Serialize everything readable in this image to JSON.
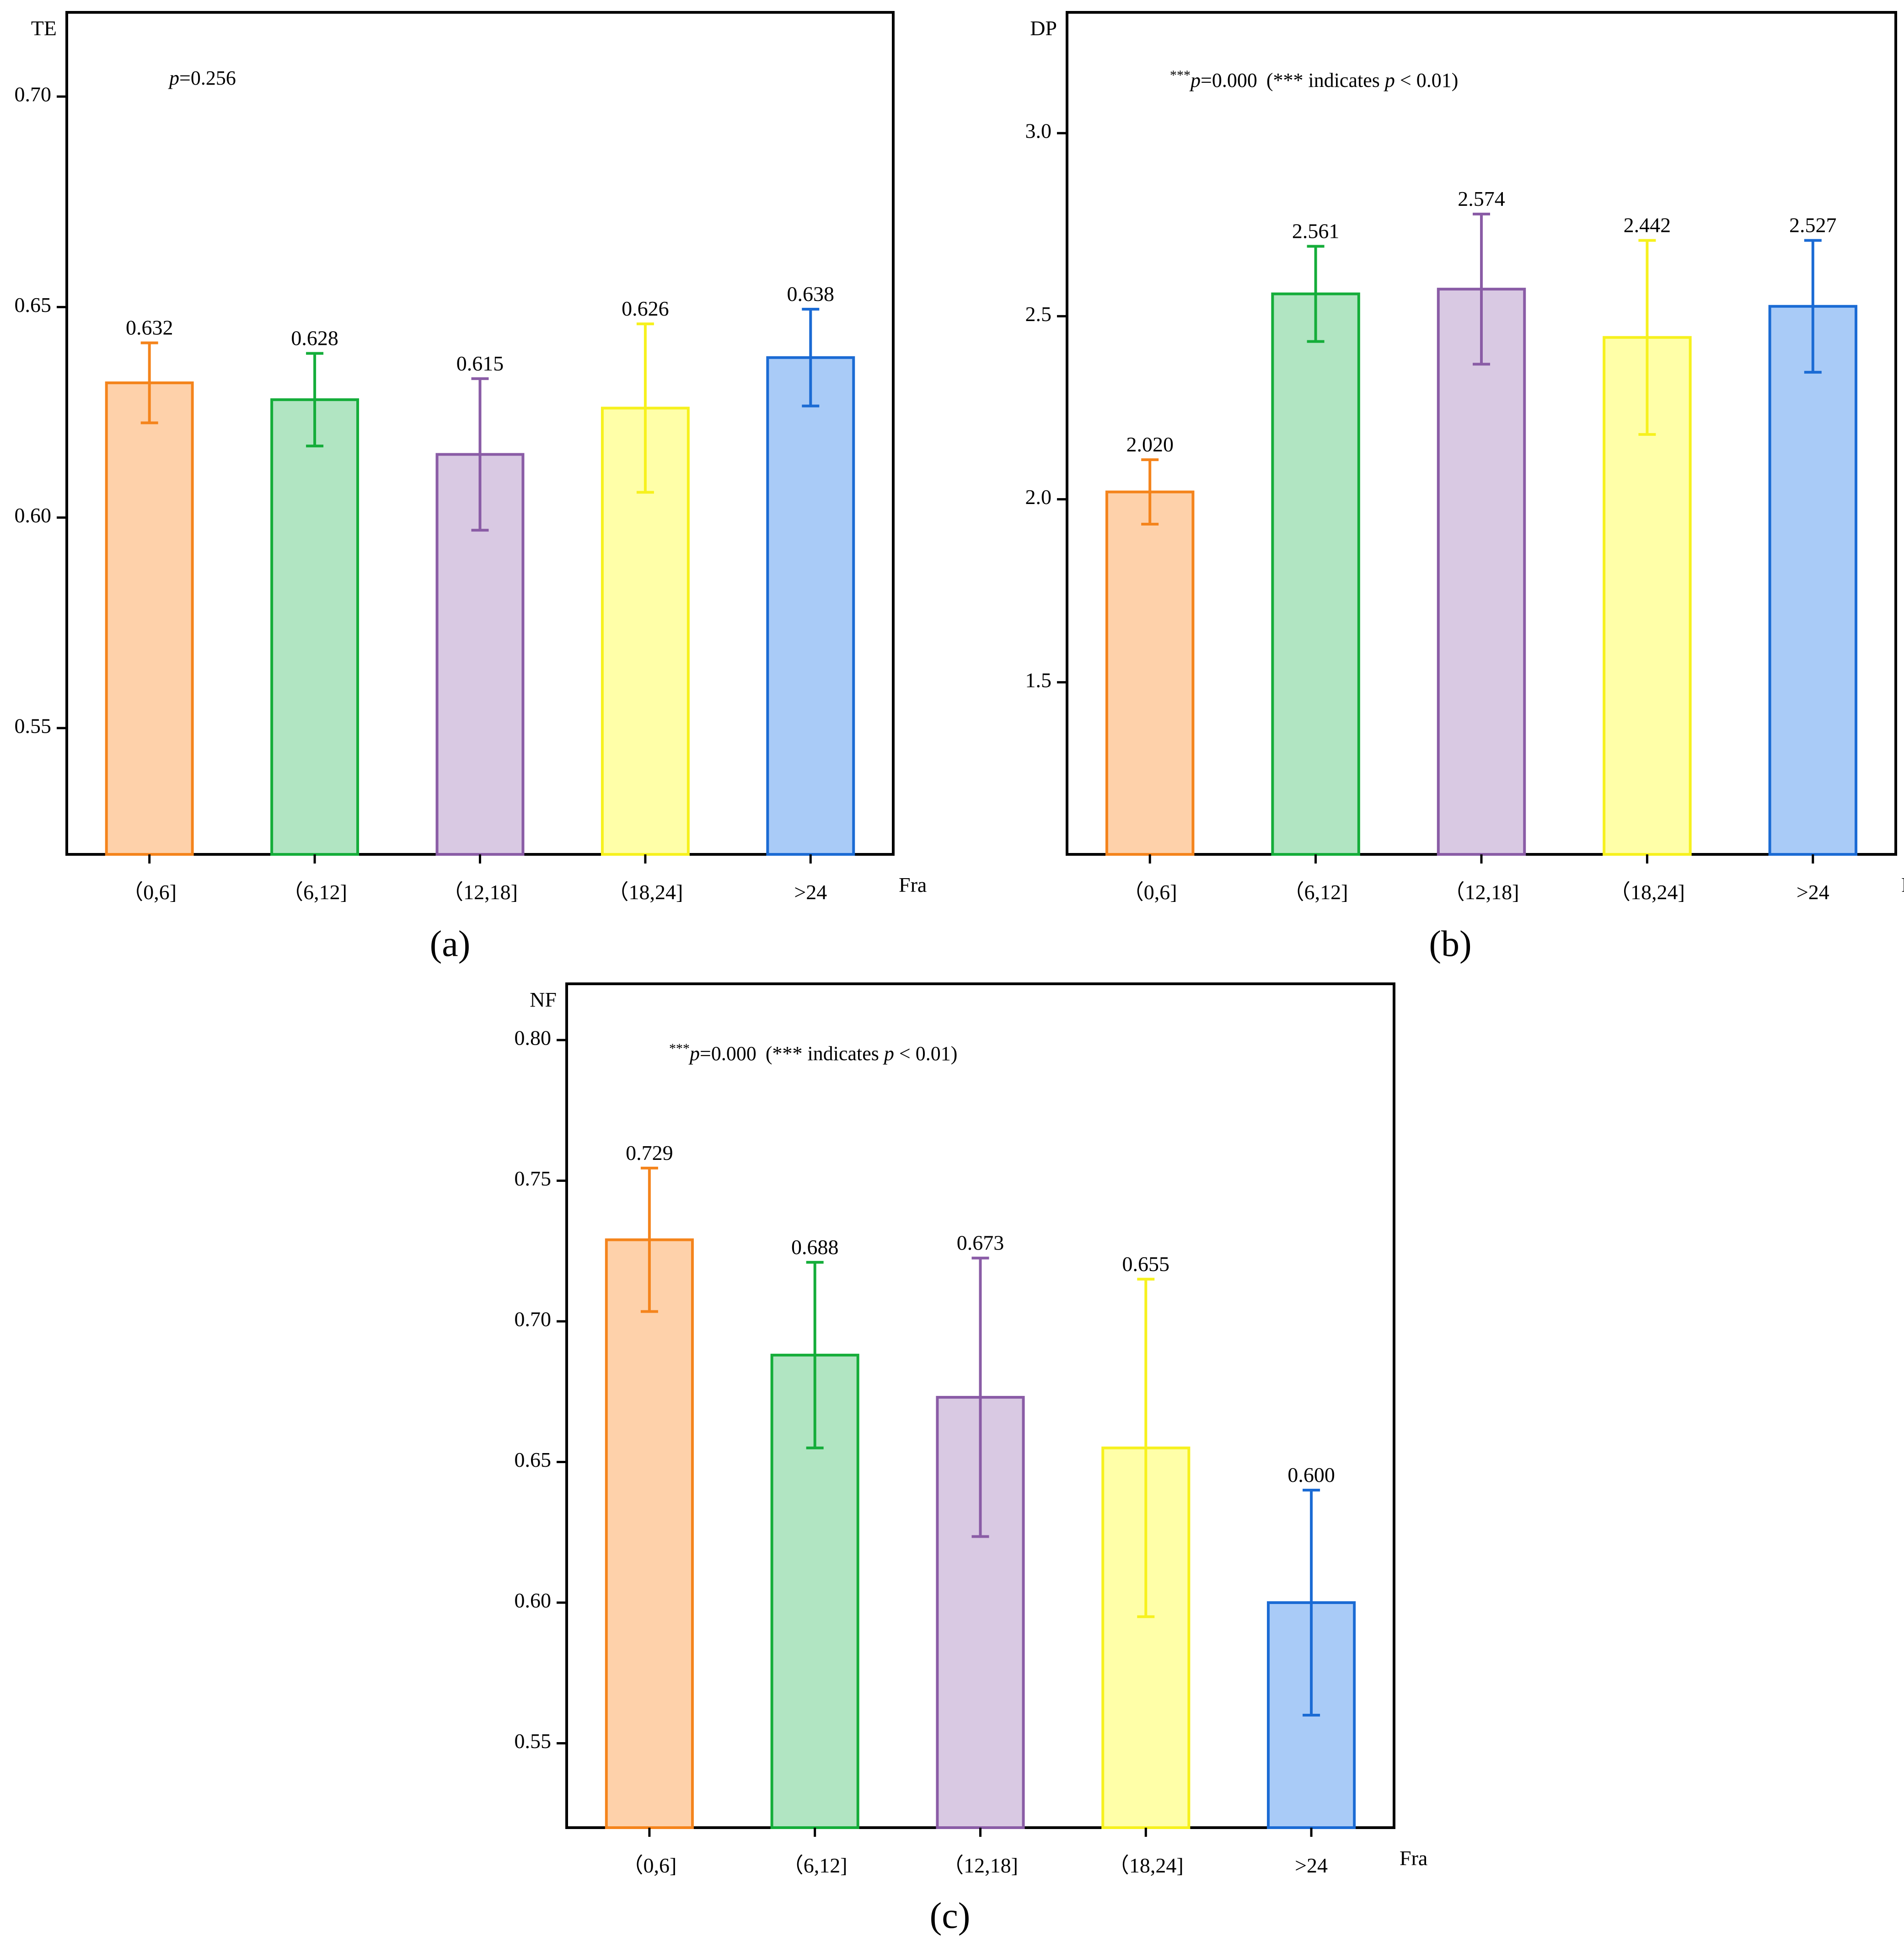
{
  "chart_data": [
    {
      "type": "bar",
      "panel": "(a)",
      "ylabel": "TE",
      "xlabel": "Fra",
      "categories": [
        "（0,6]",
        "（6,12]",
        "（12,18]",
        "（18,24]",
        ">24"
      ],
      "values": [
        0.632,
        0.628,
        0.615,
        0.626,
        0.638
      ],
      "errors": [
        0.0095,
        0.011,
        0.018,
        0.02,
        0.0115
      ],
      "value_labels": [
        "0.632",
        "0.628",
        "0.615",
        "0.626",
        "0.638"
      ],
      "ylim": [
        0.52,
        0.72
      ],
      "yticks": [
        0.55,
        0.6,
        0.65,
        0.7
      ],
      "ytick_labels": [
        "0.55",
        "0.60",
        "0.65",
        "0.70"
      ],
      "annotation": {
        "p_symbol": "p",
        "p_text": "=0.256",
        "stars": "",
        "note_prefix": "",
        "note_p": "",
        "note_suffix": ""
      }
    },
    {
      "type": "bar",
      "panel": "(b)",
      "ylabel": "DP",
      "xlabel": "Fra",
      "categories": [
        "（0,6]",
        "（6,12]",
        "（12,18]",
        "（18,24]",
        ">24"
      ],
      "values": [
        2.02,
        2.561,
        2.574,
        2.442,
        2.527
      ],
      "errors": [
        0.088,
        0.13,
        0.205,
        0.265,
        0.18
      ],
      "value_labels": [
        "2.020",
        "2.561",
        "2.574",
        "2.442",
        "2.527"
      ],
      "ylim": [
        1.03,
        3.33
      ],
      "yticks": [
        1.5,
        2.0,
        2.5,
        3.0
      ],
      "ytick_labels": [
        "1.5",
        "2.0",
        "2.5",
        "3.0"
      ],
      "annotation": {
        "p_symbol": "p",
        "p_text": "=0.000",
        "stars": "***",
        "note_prefix": "(*** indicates ",
        "note_p": "p",
        "note_suffix": " < 0.01)"
      }
    },
    {
      "type": "bar",
      "panel": "(c)",
      "ylabel": "NF",
      "xlabel": "Fra",
      "categories": [
        "（0,6]",
        "（6,12]",
        "（12,18]",
        "（18,24]",
        ">24"
      ],
      "values": [
        0.729,
        0.688,
        0.673,
        0.655,
        0.6
      ],
      "errors": [
        0.0255,
        0.033,
        0.0495,
        0.06,
        0.04
      ],
      "value_labels": [
        "0.729",
        "0.688",
        "0.673",
        "0.655",
        "0.600"
      ],
      "ylim": [
        0.52,
        0.82
      ],
      "yticks": [
        0.55,
        0.6,
        0.65,
        0.7,
        0.75,
        0.8
      ],
      "ytick_labels": [
        "0.55",
        "0.60",
        "0.65",
        "0.70",
        "0.75",
        "0.80"
      ],
      "annotation": {
        "p_symbol": "p",
        "p_text": "=0.000",
        "stars": "***",
        "note_prefix": "(*** indicates ",
        "note_p": "p",
        "note_suffix": " < 0.01)"
      }
    }
  ],
  "colors": {
    "fills": [
      "#fed1aa",
      "#b1e5c2",
      "#d9c9e3",
      "#ffffa8",
      "#a9cbf7"
    ],
    "strokes": [
      "#f4841c",
      "#15ad3a",
      "#8a5ca6",
      "#f6f11e",
      "#1b6bd4"
    ]
  }
}
